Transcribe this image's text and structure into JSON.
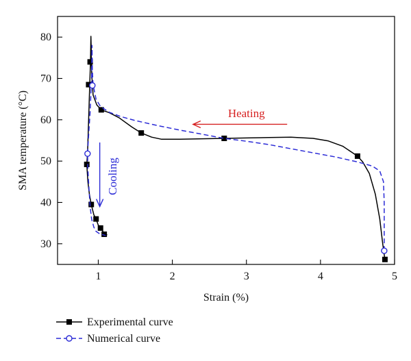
{
  "chart_data": {
    "type": "line",
    "xlabel": "Strain (%)",
    "ylabel": "SMA temperature (°C)",
    "xlim": [
      0.45,
      5.0
    ],
    "ylim": [
      25,
      85
    ],
    "xticks": [
      1,
      2,
      3,
      4,
      5
    ],
    "yticks": [
      30,
      40,
      50,
      60,
      70,
      80
    ],
    "grid": false,
    "legend_position": "bottom-left (below plot)",
    "series": [
      {
        "name": "Experimental curve",
        "color": "#000000",
        "line_style": "solid",
        "marker": "filled-square",
        "curve": [
          [
            4.87,
            26.2
          ],
          [
            4.84,
            30
          ],
          [
            4.8,
            36
          ],
          [
            4.74,
            42
          ],
          [
            4.66,
            47
          ],
          [
            4.57,
            49.8
          ],
          [
            4.5,
            51.2
          ],
          [
            4.3,
            53.6
          ],
          [
            4.1,
            54.9
          ],
          [
            3.9,
            55.5
          ],
          [
            3.6,
            55.8
          ],
          [
            3.3,
            55.7
          ],
          [
            3.0,
            55.6
          ],
          [
            2.7,
            55.5
          ],
          [
            2.4,
            55.4
          ],
          [
            2.1,
            55.3
          ],
          [
            1.85,
            55.3
          ],
          [
            1.72,
            55.8
          ],
          [
            1.58,
            56.8
          ],
          [
            1.45,
            58.3
          ],
          [
            1.28,
            60.5
          ],
          [
            1.15,
            61.7
          ],
          [
            1.04,
            62.4
          ],
          [
            0.98,
            63.6
          ],
          [
            0.93,
            66
          ],
          [
            0.915,
            70
          ],
          [
            0.905,
            74
          ],
          [
            0.905,
            77
          ],
          [
            0.9,
            80.2
          ],
          [
            0.895,
            74
          ],
          [
            0.885,
            68.5
          ],
          [
            0.87,
            60
          ],
          [
            0.855,
            52
          ],
          [
            0.845,
            49.2
          ],
          [
            0.86,
            45
          ],
          [
            0.88,
            42
          ],
          [
            0.905,
            39.5
          ],
          [
            0.94,
            37
          ],
          [
            0.97,
            36
          ],
          [
            1.0,
            34.5
          ],
          [
            1.03,
            33.8
          ],
          [
            1.07,
            32.8
          ],
          [
            1.12,
            32.1
          ]
        ],
        "markers": [
          [
            4.87,
            26.2
          ],
          [
            4.5,
            51.2
          ],
          [
            2.7,
            55.5
          ],
          [
            1.58,
            56.8
          ],
          [
            1.04,
            62.4
          ],
          [
            0.89,
            74.0
          ],
          [
            0.87,
            68.5
          ],
          [
            0.845,
            49.2
          ],
          [
            0.905,
            39.5
          ],
          [
            0.97,
            36.0
          ],
          [
            1.03,
            33.8
          ],
          [
            1.08,
            32.3
          ]
        ]
      },
      {
        "name": "Numerical curve",
        "color": "#2b2bd6",
        "line_style": "dashed",
        "marker": "open-circle",
        "curve": [
          [
            4.86,
            28.3
          ],
          [
            4.86,
            34
          ],
          [
            4.86,
            40
          ],
          [
            4.85,
            45
          ],
          [
            4.8,
            47.6
          ],
          [
            4.7,
            48.8
          ],
          [
            4.5,
            49.8
          ],
          [
            4.2,
            51.0
          ],
          [
            3.9,
            52.0
          ],
          [
            3.6,
            53.0
          ],
          [
            3.3,
            54.0
          ],
          [
            3.0,
            54.8
          ],
          [
            2.7,
            55.5
          ],
          [
            2.4,
            56.5
          ],
          [
            2.1,
            57.5
          ],
          [
            1.8,
            58.6
          ],
          [
            1.5,
            59.8
          ],
          [
            1.3,
            60.8
          ],
          [
            1.15,
            61.8
          ],
          [
            1.03,
            63.2
          ],
          [
            0.97,
            65
          ],
          [
            0.93,
            68.5
          ],
          [
            0.92,
            72
          ],
          [
            0.915,
            78
          ],
          [
            0.91,
            70
          ],
          [
            0.89,
            62
          ],
          [
            0.865,
            55
          ],
          [
            0.855,
            51.8
          ],
          [
            0.86,
            48
          ],
          [
            0.875,
            43
          ],
          [
            0.89,
            39
          ],
          [
            0.91,
            36
          ],
          [
            0.94,
            34
          ],
          [
            0.97,
            33
          ],
          [
            1.02,
            32.4
          ],
          [
            1.1,
            32.0
          ]
        ],
        "markers": [
          [
            4.86,
            28.3
          ],
          [
            0.92,
            68.3
          ],
          [
            0.855,
            51.8
          ]
        ]
      }
    ],
    "annotations": [
      {
        "text": "Heating",
        "color": "#d62020",
        "arrow_direction": "left",
        "arrow_from": [
          3.55,
          58.9
        ],
        "arrow_to": [
          2.28,
          58.9
        ],
        "text_position": [
          3.0,
          61.6
        ]
      },
      {
        "text": "Cooling",
        "color": "#2b2bd6",
        "arrow_direction": "down",
        "arrow_from": [
          1.02,
          54.5
        ],
        "arrow_to": [
          1.02,
          39.0
        ],
        "text_position": [
          1.19,
          46.3
        ]
      }
    ]
  }
}
